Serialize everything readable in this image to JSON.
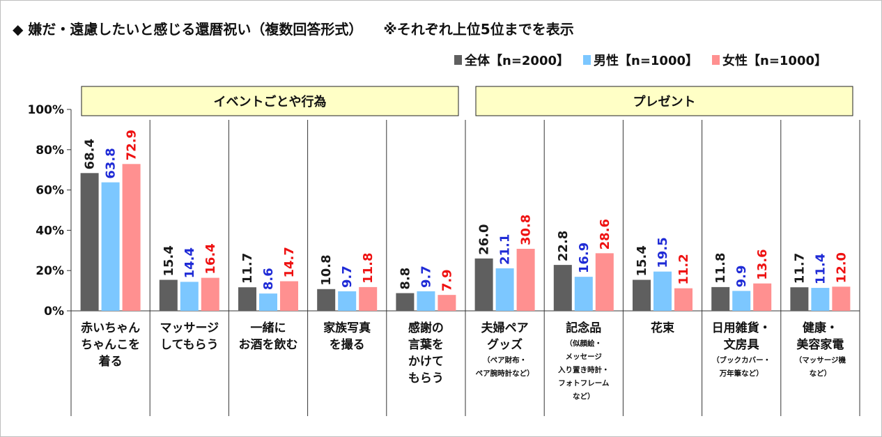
{
  "title": "◆ 嫌だ・遠慮したいと感じる還暦祝い（複数回答形式）",
  "note": "※それぞれ上位5位までを表示",
  "colors": {
    "all": "#5f5f5f",
    "male": "#7cc7ff",
    "female": "#ff9090",
    "label_all": "#1a1a1a",
    "label_male": "#1f2bd6",
    "label_female": "#ee1111",
    "group_fill": "#ffffc6"
  },
  "chart_data": {
    "type": "bar",
    "title": "◆ 嫌だ・遠慮したいと感じる還暦祝い（複数回答形式）",
    "ylim": [
      0,
      100
    ],
    "yticks": [
      "0%",
      "20%",
      "40%",
      "60%",
      "80%",
      "100%"
    ],
    "groups": [
      {
        "label": "イベントごとや行為",
        "start": 0,
        "end": 4
      },
      {
        "label": "プレゼント",
        "start": 5,
        "end": 9
      }
    ],
    "categories": [
      {
        "lines": [
          "赤いちゃん",
          "ちゃんこを",
          "着る"
        ],
        "sub": []
      },
      {
        "lines": [
          "マッサージ",
          "してもらう"
        ],
        "sub": []
      },
      {
        "lines": [
          "一緒に",
          "お酒を飲む"
        ],
        "sub": []
      },
      {
        "lines": [
          "家族写真",
          "を撮る"
        ],
        "sub": []
      },
      {
        "lines": [
          "感謝の",
          "言葉を",
          "かけて",
          "もらう"
        ],
        "sub": []
      },
      {
        "lines": [
          "夫婦ペア",
          "グッズ"
        ],
        "sub": [
          "（ペア財布・",
          "ペア腕時計など）"
        ]
      },
      {
        "lines": [
          "記念品"
        ],
        "sub": [
          "（似顔絵・",
          "メッセージ",
          "入り置き時計・",
          "フォトフレーム",
          "など）"
        ]
      },
      {
        "lines": [
          "花束"
        ],
        "sub": []
      },
      {
        "lines": [
          "日用雑貨・",
          "文房具"
        ],
        "sub": [
          "（ブックカバー・",
          "万年筆など）"
        ]
      },
      {
        "lines": [
          "健康・",
          "美容家電"
        ],
        "sub": [
          "（マッサージ機",
          "など）"
        ]
      }
    ],
    "series": [
      {
        "name": "全体【n=2000】",
        "key": "all",
        "values": [
          68.4,
          15.4,
          11.7,
          10.8,
          8.8,
          26.0,
          22.8,
          15.4,
          11.8,
          11.7
        ],
        "labels": [
          "68.4",
          "15.4",
          "11.7",
          "10.8",
          "8.8",
          "26.0",
          "22.8",
          "15.4",
          "11.8",
          "11.7"
        ]
      },
      {
        "name": "男性【n=1000】",
        "key": "male",
        "values": [
          63.8,
          14.4,
          8.6,
          9.7,
          9.7,
          21.1,
          16.9,
          19.5,
          9.9,
          11.4
        ],
        "labels": [
          "63.8",
          "14.4",
          "8.6",
          "9.7",
          "9.7",
          "21.1",
          "16.9",
          "19.5",
          "9.9",
          "11.4"
        ]
      },
      {
        "name": "女性【n=1000】",
        "key": "female",
        "values": [
          72.9,
          16.4,
          14.7,
          11.8,
          7.9,
          30.8,
          28.6,
          11.2,
          13.6,
          12.0
        ],
        "labels": [
          "72.9",
          "16.4",
          "14.7",
          "11.8",
          "7.9",
          "30.8",
          "28.6",
          "11.2",
          "13.6",
          "12.0"
        ]
      }
    ],
    "legend_position": "top-right",
    "grid": false
  }
}
